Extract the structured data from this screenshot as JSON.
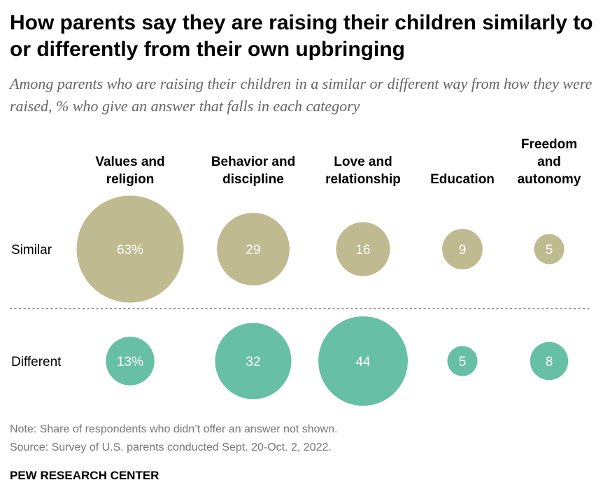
{
  "header": {
    "title": "How parents say they are raising their children similarly to or differently from their own upbringing",
    "subtitle": "Among parents who are raising their children in a similar or different way from how they were raised, % who give an answer that falls in each category"
  },
  "footer": {
    "note": "Note: Share of respondents who didn’t offer an answer not shown.",
    "source": "Source: Survey of U.S. parents conducted Sept. 20-Oct. 2, 2022.",
    "brand": "PEW RESEARCH CENTER"
  },
  "colors": {
    "similar": "#bfba8f",
    "different": "#67c0a6",
    "label_text": "#ffffff",
    "divider": "#777777"
  },
  "chart_data": {
    "type": "bubble",
    "categories": [
      [
        "Values and",
        "religion"
      ],
      [
        "Behavior and",
        "discipline"
      ],
      [
        "Love and",
        "relationship"
      ],
      [
        "Education"
      ],
      [
        "Freedom",
        "and",
        "autonomy"
      ]
    ],
    "series": [
      {
        "name": "Similar",
        "values": [
          63,
          29,
          16,
          9,
          5
        ],
        "labels": [
          "63%",
          "29",
          "16",
          "9",
          "5"
        ]
      },
      {
        "name": "Different",
        "values": [
          13,
          32,
          44,
          5,
          8
        ],
        "labels": [
          "13%",
          "32",
          "44",
          "5",
          "8"
        ]
      }
    ],
    "encoding": "circle area proportional to value"
  }
}
